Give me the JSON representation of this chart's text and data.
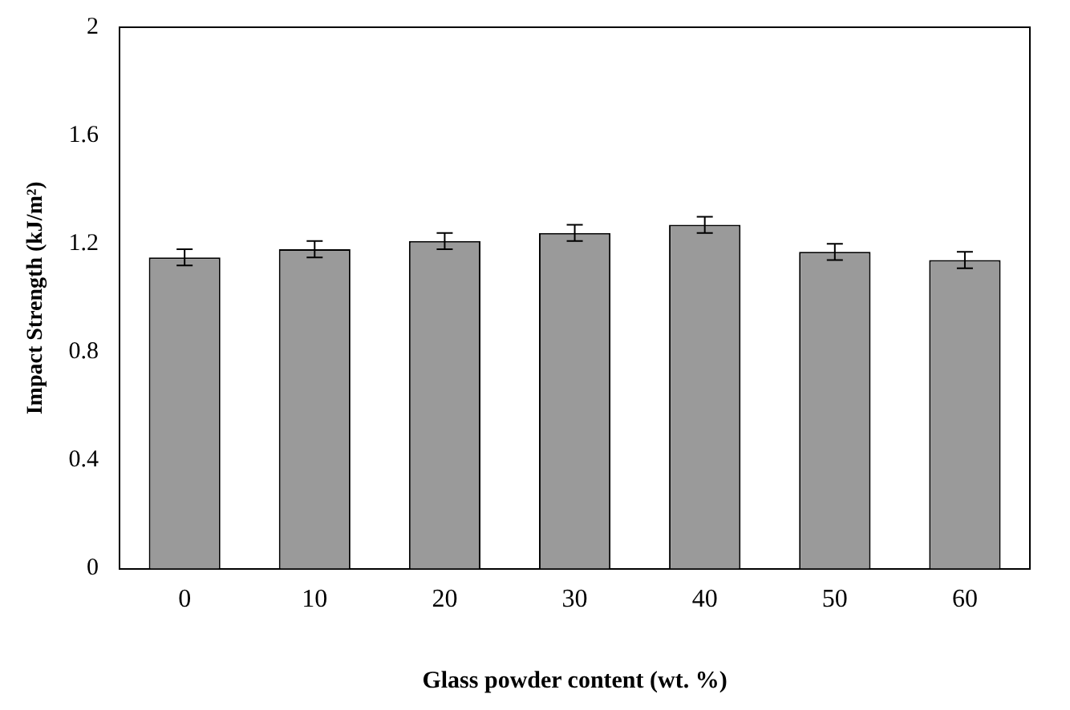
{
  "chart_data": {
    "type": "bar",
    "xlabel": "Glass powder content (wt. %)",
    "ylabel": "Impact Strength (kJ/m²)",
    "categories": [
      "0",
      "10",
      "20",
      "30",
      "40",
      "50",
      "60"
    ],
    "values": [
      1.15,
      1.18,
      1.21,
      1.24,
      1.27,
      1.17,
      1.14
    ],
    "errors": [
      0.03,
      0.03,
      0.03,
      0.03,
      0.03,
      0.03,
      0.03
    ],
    "color": "#9a9a9a",
    "ylim": [
      0,
      2
    ],
    "yticks": [
      0,
      0.4,
      0.8,
      1.2,
      1.6,
      2
    ],
    "grid": false,
    "legend": false
  }
}
